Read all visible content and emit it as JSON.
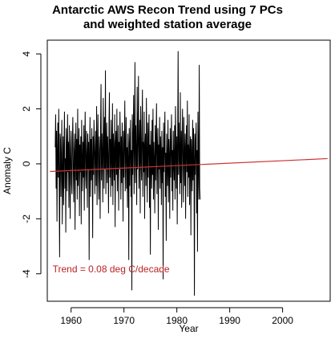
{
  "chart_data": {
    "type": "line",
    "title_line1": "Antarctic AWS Recon Trend using 7 PCs",
    "title_line2": "and weighted station average",
    "xlabel": "Year",
    "ylabel": "Anomaly C",
    "xlim": [
      1955.5,
      2009
    ],
    "ylim": [
      -5,
      4.5
    ],
    "x_ticks": [
      1960,
      1970,
      1980,
      1990,
      2000
    ],
    "x_tick_labels": [
      "1960",
      "1970",
      "1980",
      "1990",
      "2000"
    ],
    "y_ticks": [
      -4,
      -2,
      0,
      2,
      4
    ],
    "y_tick_labels": [
      "-4",
      "-2",
      "0",
      "2",
      "4"
    ],
    "series": [
      {
        "type": "monthly-anomaly",
        "color": "#000000",
        "start": 1957.0,
        "step": 0.0833,
        "values": [
          0.6,
          1.8,
          -0.9,
          1.2,
          -2.1,
          0.4,
          1.5,
          -0.5,
          2.0,
          -0.8,
          -3.4,
          1.1,
          0.9,
          -1.2,
          0.3,
          1.6,
          -2.2,
          -0.4,
          1.0,
          -1.5,
          0.7,
          1.9,
          -0.9,
          0.2,
          -2.5,
          1.3,
          0.5,
          -1.0,
          1.8,
          -0.3,
          0.8,
          -1.6,
          1.4,
          0.1,
          -2.0,
          0.6,
          1.2,
          -0.7,
          -1.1,
          0.9,
          1.7,
          -0.2,
          -1.4,
          0.5,
          1.1,
          -2.4,
          0.3,
          1.5,
          -0.6,
          0.9,
          -1.3,
          2.0,
          -0.8,
          0.4,
          1.3,
          -1.9,
          0.7,
          -0.3,
          1.0,
          -2.2,
          1.6,
          0.2,
          -1.0,
          0.8,
          -0.5,
          1.4,
          -1.7,
          0.6,
          1.9,
          -0.4,
          -0.9,
          1.2,
          0.3,
          -1.6,
          1.1,
          -0.2,
          0.8,
          -3.5,
          0.5,
          1.7,
          -1.2,
          0.9,
          -0.6,
          1.3,
          0.2,
          -2.7,
          1.0,
          -0.4,
          1.6,
          0.7,
          -1.1,
          0.4,
          1.2,
          -0.8,
          2.1,
          -1.5,
          0.6,
          1.8,
          -0.3,
          -1.3,
          1.0,
          0.5,
          -2.0,
          1.4,
          2.9,
          -0.6,
          1.1,
          0.3,
          -1.4,
          2.4,
          0.8,
          -0.9,
          1.7,
          -0.2,
          3.4,
          -1.1,
          0.6,
          1.5,
          -0.7,
          1.0,
          0.2,
          -1.8,
          1.3,
          2.6,
          -0.5,
          0.9,
          -1.2,
          1.6,
          0.4,
          -0.8,
          2.2,
          -1.5,
          1.1,
          0.3,
          -0.6,
          1.8,
          -2.3,
          0.7,
          1.2,
          -0.4,
          2.0,
          -1.0,
          0.5,
          1.4,
          -1.7,
          0.8,
          -0.2,
          1.9,
          0.6,
          -1.3,
          1.0,
          -0.7,
          1.5,
          0.3,
          -2.1,
          1.2,
          -0.5,
          0.9,
          2.3,
          -1.0,
          0.4,
          1.7,
          -0.9,
          0.6,
          -1.6,
          1.1,
          0.2,
          -3.5,
          1.3,
          -0.8,
          0.7,
          1.6,
          -1.2,
          0.5,
          -4.6,
          1.8,
          -0.4,
          0.9,
          2.5,
          -1.1,
          0.6,
          3.7,
          -0.7,
          1.4,
          0.3,
          -1.5,
          2.8,
          -0.2,
          1.0,
          3.2,
          -0.9,
          0.5,
          1.6,
          -1.8,
          2.1,
          0.4,
          -0.6,
          1.3,
          2.7,
          -1.2,
          0.8,
          -0.3,
          1.9,
          -2.0,
          0.6,
          1.1,
          -0.8,
          2.4,
          0.2,
          -1.4,
          1.5,
          -0.5,
          0.9,
          1.8,
          -1.6,
          0.7,
          -3.3,
          1.2,
          0.3,
          -0.9,
          1.6,
          -0.4,
          2.0,
          -1.3,
          0.8,
          0.1,
          -1.8,
          1.4,
          -0.6,
          0.9,
          2.2,
          -1.1,
          0.5,
          1.3,
          -2.4,
          0.7,
          -0.2,
          1.7,
          -0.9,
          1.0,
          0.4,
          -1.5,
          1.2,
          -0.7,
          0.6,
          -4.2,
          1.5,
          -0.3,
          0.8,
          1.9,
          -1.2,
          0.4,
          -2.8,
          1.1,
          0.2,
          -0.8,
          1.6,
          -1.4,
          0.9,
          0.3,
          -2.0,
          1.3,
          -0.5,
          0.7,
          1.8,
          -1.0,
          0.5,
          -1.7,
          1.2,
          0.1,
          -0.6,
          1.4,
          -1.3,
          2.1,
          0.6,
          -0.9,
          1.0,
          -2.2,
          0.8,
          4.1,
          -0.4,
          1.5,
          0.3,
          -1.1,
          2.6,
          -0.7,
          1.2,
          -1.6,
          0.9,
          2.0,
          -0.2,
          -1.4,
          1.7,
          0.5,
          -0.8,
          1.1,
          -2.0,
          0.6,
          1.4,
          -0.3,
          2.3,
          -1.2,
          0.7,
          -0.5,
          1.8,
          -1.5,
          0.4,
          1.0,
          -2.6,
          0.9,
          0.2,
          -1.0,
          1.6,
          -0.6,
          1.3,
          0.1,
          -4.8,
          1.1,
          -0.4,
          0.8,
          1.5,
          -1.8,
          0.5,
          -3.2,
          1.9,
          0.3,
          -1.3,
          3.6,
          -0.9,
          -1.3
        ]
      },
      {
        "type": "linear-trend",
        "color": "#cc3333",
        "x0": 1956.0,
        "y0": -0.28,
        "x1": 2008.5,
        "y1": 0.19
      }
    ],
    "annotation": {
      "text": "Trend = 0.08  deg C/decade",
      "color": "#bb2222",
      "x": 1956.5,
      "y": -3.95
    }
  }
}
